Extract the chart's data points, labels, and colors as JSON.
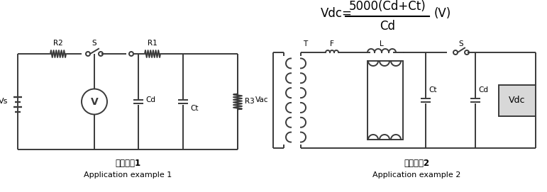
{
  "bg_color": "#ffffff",
  "line_color": "#3a3a3a",
  "text_color": "#000000",
  "fig_width": 7.71,
  "fig_height": 2.71,
  "label1_chinese": "应用实例1",
  "label1_english": "Application example 1",
  "label2_chinese": "应用实例2",
  "label2_english": "Application example 2",
  "formula_lhs": "Vdc=",
  "formula_numerator": "5000(Cd+Ct)",
  "formula_denominator": "Cd",
  "formula_unit": "(V)"
}
